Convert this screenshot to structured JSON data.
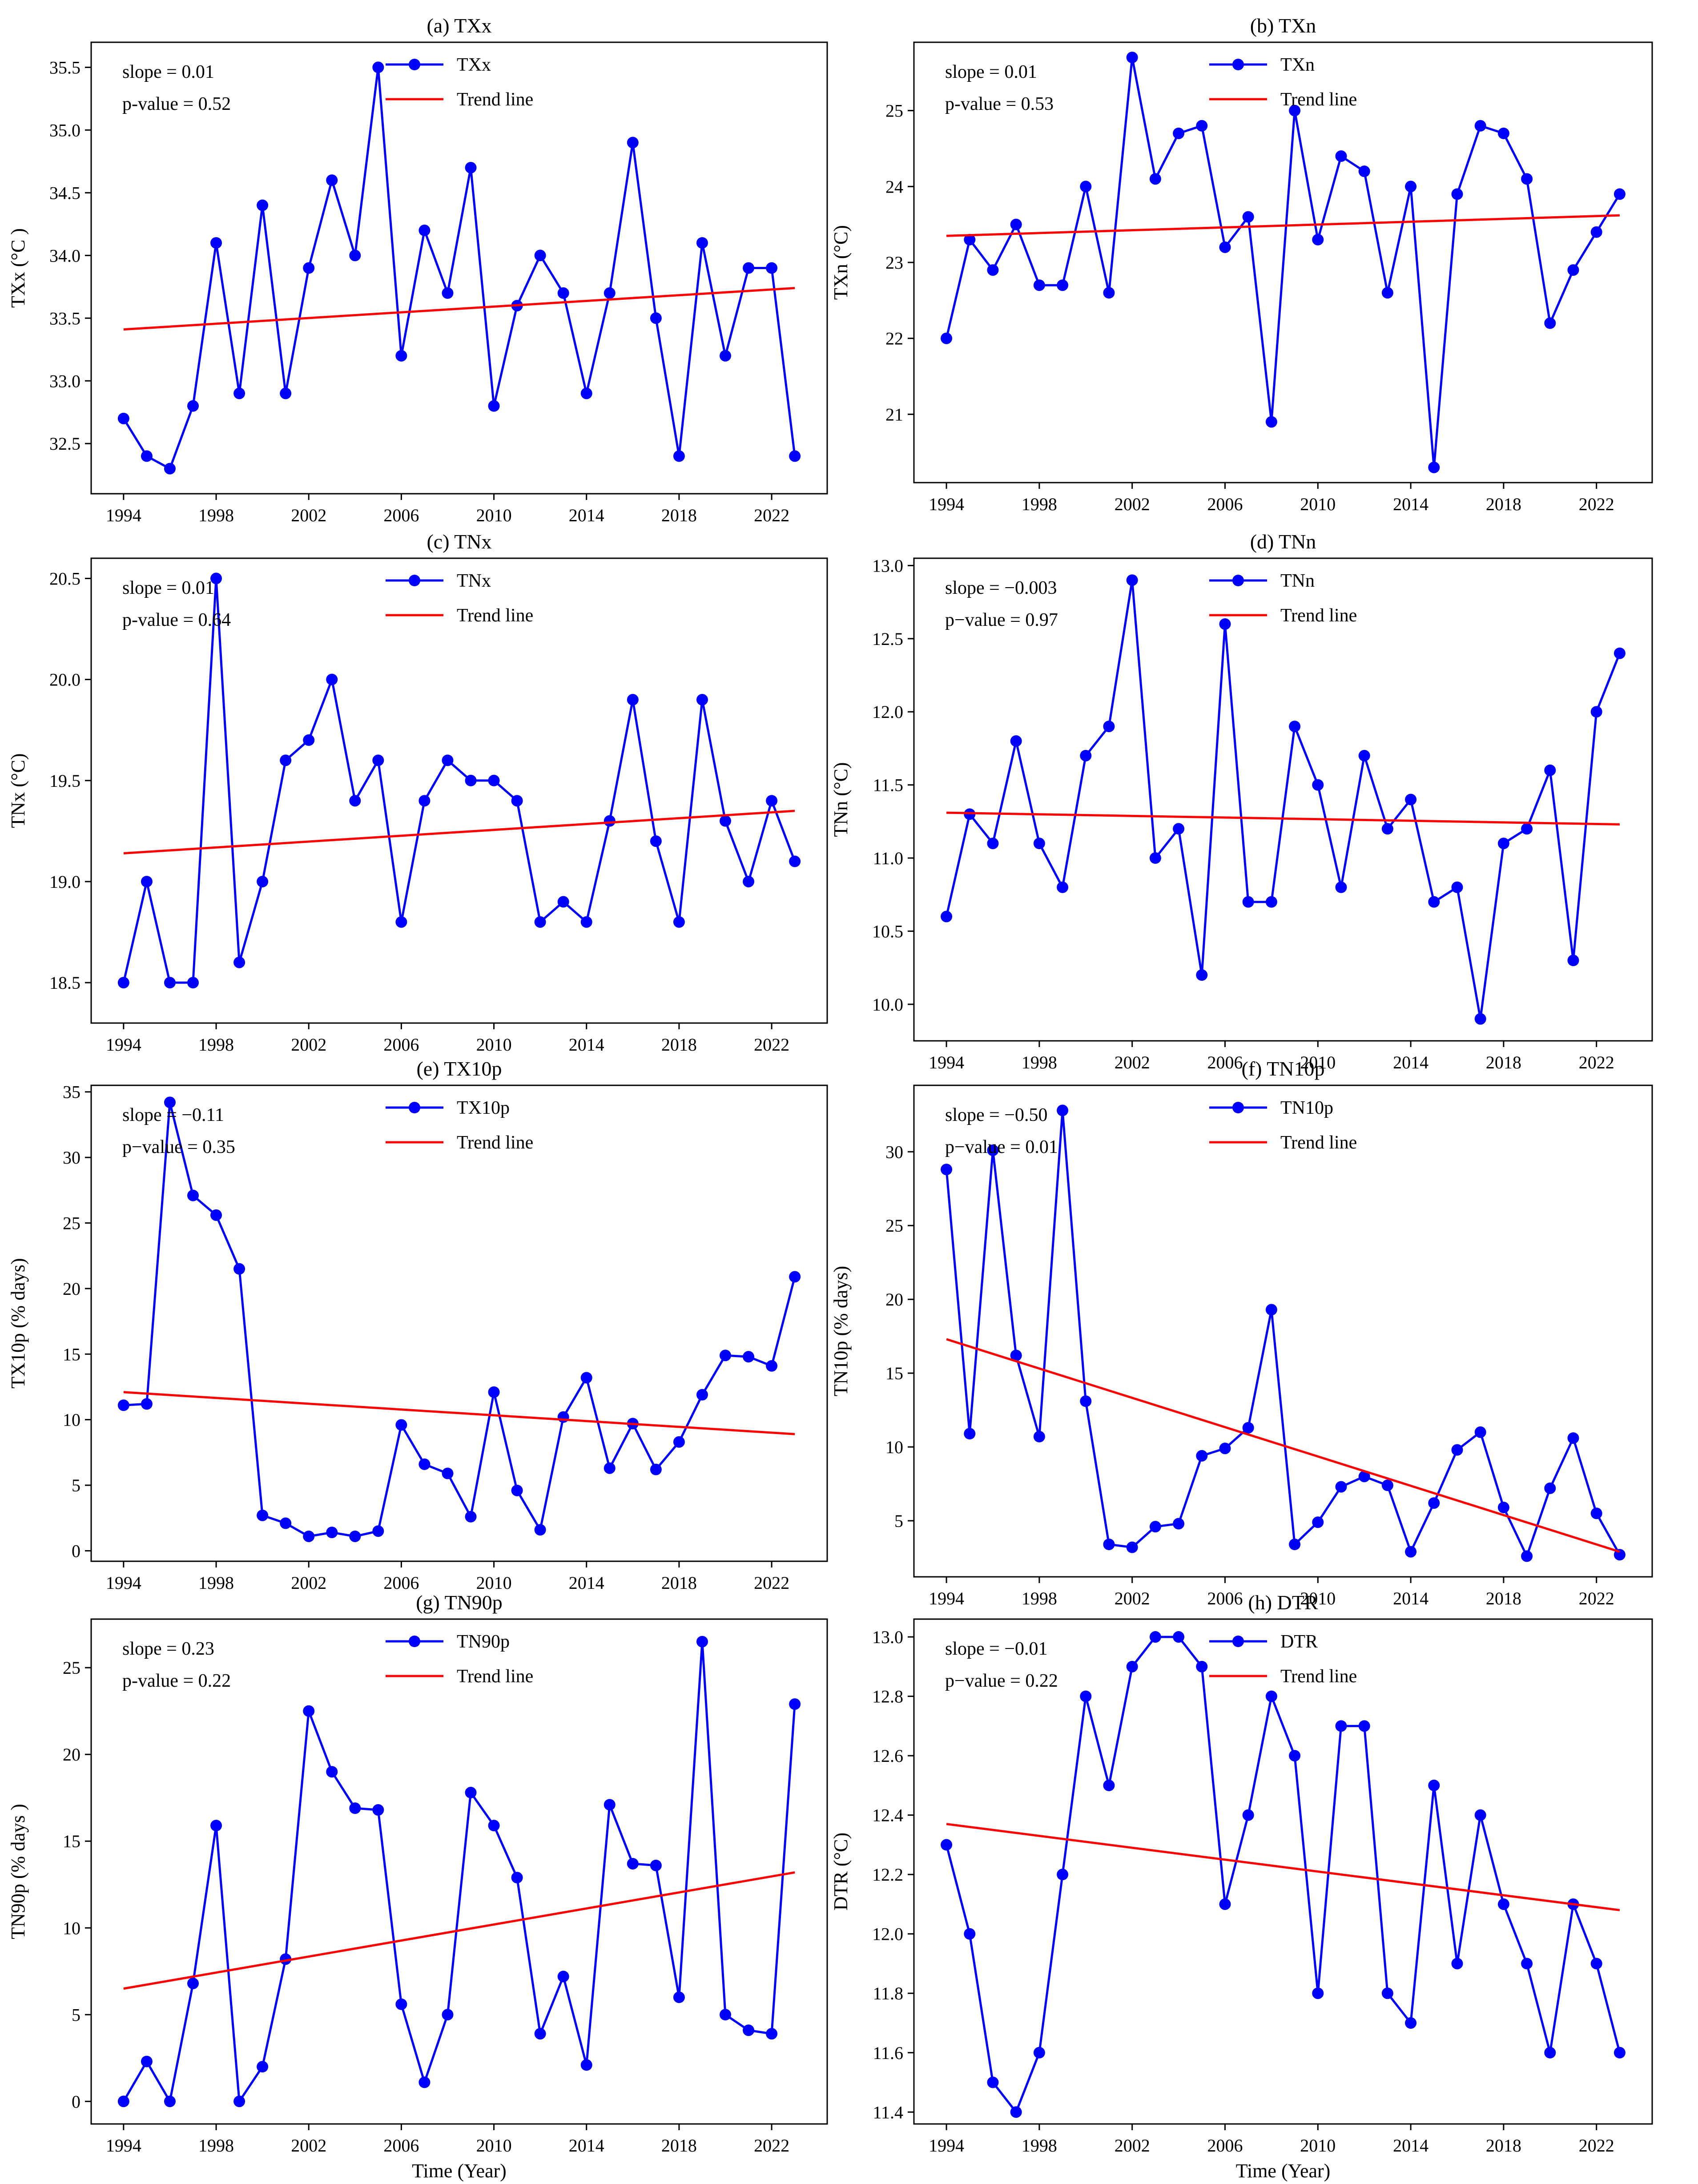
{
  "figure": {
    "xlabel_bottom": "Time (Year)"
  },
  "chart_data": [
    {
      "type": "line",
      "title": "(a) TXx",
      "ylabel": "TXx (°C )",
      "xlabel": "",
      "x": [
        1994,
        1995,
        1996,
        1997,
        1998,
        1999,
        2000,
        2001,
        2002,
        2003,
        2004,
        2005,
        2006,
        2007,
        2008,
        2009,
        2010,
        2011,
        2012,
        2013,
        2014,
        2015,
        2016,
        2017,
        2018,
        2019,
        2020,
        2021,
        2022,
        2023
      ],
      "xticks": [
        1994,
        1998,
        2002,
        2006,
        2010,
        2014,
        2018,
        2022
      ],
      "xlim": [
        1992.6,
        2024.4
      ],
      "yticks": [
        32.5,
        33.0,
        33.5,
        34.0,
        34.5,
        35.0,
        35.5
      ],
      "ytick_labels": [
        "32.5",
        "33.0",
        "33.5",
        "34.0",
        "34.5",
        "35.0",
        "35.5"
      ],
      "ylim": [
        32.1,
        35.7
      ],
      "series": [
        {
          "name": "TXx",
          "color": "#0000ff",
          "values": [
            32.7,
            32.4,
            32.3,
            32.8,
            34.1,
            32.9,
            34.4,
            32.9,
            33.9,
            34.6,
            34.0,
            35.5,
            33.2,
            34.2,
            33.7,
            34.7,
            32.8,
            33.6,
            34.0,
            33.7,
            32.9,
            33.7,
            34.9,
            33.5,
            32.4,
            34.1,
            33.2,
            33.9,
            33.9,
            32.4
          ]
        },
        {
          "name": "Trend line",
          "color": "#ff0000",
          "trend": [
            33.41,
            33.74
          ]
        }
      ],
      "annotations": [
        "slope = 0.01",
        "p-value = 0.52"
      ],
      "legend": "top-center"
    },
    {
      "type": "line",
      "title": "(b) TXn",
      "ylabel": "TXn (°C)",
      "xlabel": "",
      "x": [
        1994,
        1995,
        1996,
        1997,
        1998,
        1999,
        2000,
        2001,
        2002,
        2003,
        2004,
        2005,
        2006,
        2007,
        2008,
        2009,
        2010,
        2011,
        2012,
        2013,
        2014,
        2015,
        2016,
        2017,
        2018,
        2019,
        2020,
        2021,
        2022,
        2023
      ],
      "xticks": [
        1994,
        1998,
        2002,
        2006,
        2010,
        2014,
        2018,
        2022
      ],
      "xlim": [
        1992.6,
        2024.4
      ],
      "yticks": [
        21,
        22,
        23,
        24,
        25
      ],
      "ytick_labels": [
        "21",
        "22",
        "23",
        "24",
        "25"
      ],
      "ylim": [
        20.1,
        25.9
      ],
      "series": [
        {
          "name": "TXn",
          "color": "#0000ff",
          "values": [
            22.0,
            23.3,
            22.9,
            23.5,
            22.7,
            22.7,
            24.0,
            22.6,
            25.7,
            24.1,
            24.7,
            24.8,
            23.2,
            23.6,
            20.9,
            25.0,
            23.3,
            24.4,
            24.2,
            22.6,
            24.0,
            20.3,
            23.9,
            24.8,
            24.7,
            24.1,
            22.2,
            22.9,
            23.4,
            23.9
          ]
        },
        {
          "name": "Trend line",
          "color": "#ff0000",
          "trend": [
            23.35,
            23.62
          ]
        }
      ],
      "annotations": [
        "slope = 0.01",
        "p-value = 0.53"
      ],
      "legend": "top-center"
    },
    {
      "type": "line",
      "title": "(c) TNx",
      "ylabel": "TNx (°C)",
      "xlabel": "",
      "x": [
        1994,
        1995,
        1996,
        1997,
        1998,
        1999,
        2000,
        2001,
        2002,
        2003,
        2004,
        2005,
        2006,
        2007,
        2008,
        2009,
        2010,
        2011,
        2012,
        2013,
        2014,
        2015,
        2016,
        2017,
        2018,
        2019,
        2020,
        2021,
        2022,
        2023
      ],
      "xticks": [
        1994,
        1998,
        2002,
        2006,
        2010,
        2014,
        2018,
        2022
      ],
      "xlim": [
        1992.6,
        2024.4
      ],
      "yticks": [
        18.5,
        19.0,
        19.5,
        20.0,
        20.5
      ],
      "ytick_labels": [
        "18.5",
        "19.0",
        "19.5",
        "20.0",
        "20.5"
      ],
      "ylim": [
        18.3,
        20.6
      ],
      "series": [
        {
          "name": "TNx",
          "color": "#0000ff",
          "values": [
            18.5,
            19.0,
            18.5,
            18.5,
            20.5,
            18.6,
            19.0,
            19.6,
            19.7,
            20.0,
            19.4,
            19.6,
            18.8,
            19.4,
            19.6,
            19.5,
            19.5,
            19.4,
            18.8,
            18.9,
            18.8,
            19.3,
            19.9,
            19.2,
            18.8,
            19.9,
            19.3,
            19.0,
            19.4,
            19.1
          ]
        },
        {
          "name": "Trend line",
          "color": "#ff0000",
          "trend": [
            19.14,
            19.35
          ]
        }
      ],
      "annotations": [
        "slope = 0.01",
        "p-value = 0.64"
      ],
      "legend": "top-center"
    },
    {
      "type": "line",
      "title": "(d) TNn",
      "ylabel": "TNn (°C)",
      "xlabel": "",
      "x": [
        1994,
        1995,
        1996,
        1997,
        1998,
        1999,
        2000,
        2001,
        2002,
        2003,
        2004,
        2005,
        2006,
        2007,
        2008,
        2009,
        2010,
        2011,
        2012,
        2013,
        2014,
        2015,
        2016,
        2017,
        2018,
        2019,
        2020,
        2021,
        2022,
        2023
      ],
      "xticks": [
        1994,
        1998,
        2002,
        2006,
        2010,
        2014,
        2018,
        2022
      ],
      "xlim": [
        1992.6,
        2024.4
      ],
      "yticks": [
        10.0,
        10.5,
        11.0,
        11.5,
        12.0,
        12.5,
        13.0
      ],
      "ytick_labels": [
        "10.0",
        "10.5",
        "11.0",
        "11.5",
        "12.0",
        "12.5",
        "13.0"
      ],
      "ylim": [
        9.75,
        13.05
      ],
      "series": [
        {
          "name": "TNn",
          "color": "#0000ff",
          "values": [
            10.6,
            11.3,
            11.1,
            11.8,
            11.1,
            10.8,
            11.7,
            11.9,
            12.9,
            11.0,
            11.2,
            10.2,
            12.6,
            10.7,
            10.7,
            11.9,
            11.5,
            10.8,
            11.7,
            11.2,
            11.4,
            10.7,
            10.8,
            9.9,
            11.1,
            11.2,
            11.6,
            10.3,
            12.0,
            12.4
          ]
        },
        {
          "name": "Trend line",
          "color": "#ff0000",
          "trend": [
            11.31,
            11.23
          ]
        }
      ],
      "annotations": [
        "slope = −0.003",
        "p−value = 0.97"
      ],
      "legend": "top-center"
    },
    {
      "type": "line",
      "title": "(e) TX10p",
      "ylabel": "TX10p (% days)",
      "xlabel": "",
      "x": [
        1994,
        1995,
        1996,
        1997,
        1998,
        1999,
        2000,
        2001,
        2002,
        2003,
        2004,
        2005,
        2006,
        2007,
        2008,
        2009,
        2010,
        2011,
        2012,
        2013,
        2014,
        2015,
        2016,
        2017,
        2018,
        2019,
        2020,
        2021,
        2022,
        2023
      ],
      "xticks": [
        1994,
        1998,
        2002,
        2006,
        2010,
        2014,
        2018,
        2022
      ],
      "xlim": [
        1992.6,
        2024.4
      ],
      "yticks": [
        0,
        5,
        10,
        15,
        20,
        25,
        30,
        35
      ],
      "ytick_labels": [
        "0",
        "5",
        "10",
        "15",
        "20",
        "25",
        "30",
        "35"
      ],
      "ylim": [
        -0.8,
        35.5
      ],
      "series": [
        {
          "name": "TX10p",
          "color": "#0000ff",
          "values": [
            11.1,
            11.2,
            34.2,
            27.1,
            25.6,
            21.5,
            2.7,
            2.1,
            1.1,
            1.4,
            1.1,
            1.5,
            9.6,
            6.6,
            5.9,
            2.6,
            12.1,
            4.6,
            1.6,
            10.2,
            13.2,
            6.3,
            9.7,
            6.2,
            8.3,
            11.9,
            14.9,
            14.8,
            14.1,
            20.9
          ]
        },
        {
          "name": "Trend line",
          "color": "#ff0000",
          "trend": [
            12.1,
            8.9
          ]
        }
      ],
      "annotations": [
        "slope = −0.11",
        "p−value = 0.35"
      ],
      "legend": "top-center"
    },
    {
      "type": "line",
      "title": "(f) TN10p",
      "ylabel": "TN10p (% days)",
      "xlabel": "",
      "x": [
        1994,
        1995,
        1996,
        1997,
        1998,
        1999,
        2000,
        2001,
        2002,
        2003,
        2004,
        2005,
        2006,
        2007,
        2008,
        2009,
        2010,
        2011,
        2012,
        2013,
        2014,
        2015,
        2016,
        2017,
        2018,
        2019,
        2020,
        2021,
        2022,
        2023
      ],
      "xticks": [
        1994,
        1998,
        2002,
        2006,
        2010,
        2014,
        2018,
        2022
      ],
      "xlim": [
        1992.6,
        2024.4
      ],
      "yticks": [
        5,
        10,
        15,
        20,
        25,
        30
      ],
      "ytick_labels": [
        "5",
        "10",
        "15",
        "20",
        "25",
        "30"
      ],
      "ylim": [
        1.2,
        34.5
      ],
      "series": [
        {
          "name": "TN10p",
          "color": "#0000ff",
          "values": [
            28.8,
            10.9,
            30.1,
            16.2,
            10.7,
            32.8,
            13.1,
            3.4,
            3.2,
            4.6,
            4.8,
            9.4,
            9.9,
            11.3,
            19.3,
            3.4,
            4.9,
            7.3,
            8.0,
            7.4,
            2.9,
            6.2,
            9.8,
            11.0,
            5.9,
            2.6,
            7.2,
            10.6,
            5.5,
            2.7
          ]
        },
        {
          "name": "Trend line",
          "color": "#ff0000",
          "trend": [
            17.3,
            2.9
          ]
        }
      ],
      "annotations": [
        "slope = −0.50",
        "p−value = 0.01"
      ],
      "legend": "top-center"
    },
    {
      "type": "line",
      "title": "(g) TN90p",
      "ylabel": "TN90p (% days )",
      "xlabel": "Time (Year)",
      "x": [
        1994,
        1995,
        1996,
        1997,
        1998,
        1999,
        2000,
        2001,
        2002,
        2003,
        2004,
        2005,
        2006,
        2007,
        2008,
        2009,
        2010,
        2011,
        2012,
        2013,
        2014,
        2015,
        2016,
        2017,
        2018,
        2019,
        2020,
        2021,
        2022,
        2023
      ],
      "xticks": [
        1994,
        1998,
        2002,
        2006,
        2010,
        2014,
        2018,
        2022
      ],
      "xlim": [
        1992.6,
        2024.4
      ],
      "yticks": [
        0,
        5,
        10,
        15,
        20,
        25
      ],
      "ytick_labels": [
        "0",
        "5",
        "10",
        "15",
        "20",
        "25"
      ],
      "ylim": [
        -1.3,
        27.8
      ],
      "series": [
        {
          "name": "TN90p",
          "color": "#0000ff",
          "values": [
            0.0,
            2.3,
            0.0,
            6.8,
            15.9,
            0.0,
            2.0,
            8.2,
            22.5,
            19.0,
            16.9,
            16.8,
            5.6,
            1.1,
            5.0,
            17.8,
            15.9,
            12.9,
            3.9,
            7.2,
            2.1,
            17.1,
            13.7,
            13.6,
            6.0,
            26.5,
            5.0,
            4.1,
            3.9,
            22.9
          ]
        },
        {
          "name": "Trend line",
          "color": "#ff0000",
          "trend": [
            6.5,
            13.2
          ]
        }
      ],
      "annotations": [
        "slope = 0.23",
        "p-value = 0.22"
      ],
      "legend": "top-center"
    },
    {
      "type": "line",
      "title": "(h) DTR",
      "ylabel": "DTR (°C)",
      "xlabel": "Time (Year)",
      "x": [
        1994,
        1995,
        1996,
        1997,
        1998,
        1999,
        2000,
        2001,
        2002,
        2003,
        2004,
        2005,
        2006,
        2007,
        2008,
        2009,
        2010,
        2011,
        2012,
        2013,
        2014,
        2015,
        2016,
        2017,
        2018,
        2019,
        2020,
        2021,
        2022,
        2023
      ],
      "xticks": [
        1994,
        1998,
        2002,
        2006,
        2010,
        2014,
        2018,
        2022
      ],
      "xlim": [
        1992.6,
        2024.4
      ],
      "yticks": [
        11.4,
        11.6,
        11.8,
        12.0,
        12.2,
        12.4,
        12.6,
        12.8,
        13.0
      ],
      "ytick_labels": [
        "11.4",
        "11.6",
        "11.8",
        "12.0",
        "12.2",
        "12.4",
        "12.6",
        "12.8",
        "13.0"
      ],
      "ylim": [
        11.36,
        13.06
      ],
      "series": [
        {
          "name": "DTR",
          "color": "#0000ff",
          "values": [
            12.3,
            12.0,
            11.5,
            11.4,
            11.6,
            12.2,
            12.8,
            12.5,
            12.9,
            13.0,
            13.0,
            12.9,
            12.1,
            12.4,
            12.8,
            12.6,
            11.8,
            12.7,
            12.7,
            11.8,
            11.7,
            12.5,
            11.9,
            12.4,
            12.1,
            11.9,
            11.6,
            12.1,
            11.9,
            11.6
          ]
        },
        {
          "name": "Trend line",
          "color": "#ff0000",
          "trend": [
            12.37,
            12.08
          ]
        }
      ],
      "annotations": [
        "slope = −0.01",
        "p−value = 0.22"
      ],
      "legend": "top-center"
    }
  ]
}
